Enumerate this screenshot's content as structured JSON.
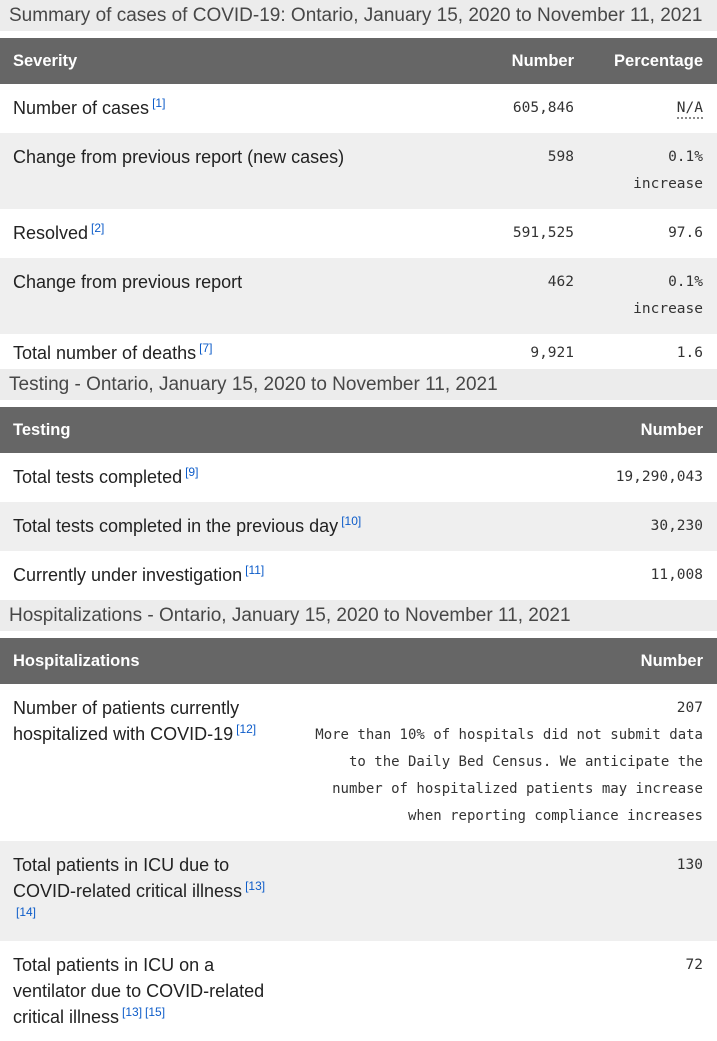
{
  "summary_table": {
    "caption": "Summary of cases of COVID-19: Ontario, January 15, 2020 to November 11, 2021",
    "columns": {
      "severity": "Severity",
      "number": "Number",
      "percentage": "Percentage"
    },
    "rows": [
      {
        "label": "Number of cases",
        "ref": "[1]",
        "number": "605,846",
        "percentage": "N/A"
      },
      {
        "label": "Change from previous report (new cases)",
        "number": "598",
        "percentage": "0.1%",
        "percentage_note": "increase"
      },
      {
        "label": "Resolved",
        "ref": "[2]",
        "number": "591,525",
        "percentage": "97.6"
      },
      {
        "label": "Change from previous report",
        "number": "462",
        "percentage": "0.1%",
        "percentage_note": "increase"
      },
      {
        "label": "Total number of deaths",
        "ref": "[7]",
        "number": "9,921",
        "percentage": "1.6"
      }
    ]
  },
  "testing_table": {
    "caption": "Testing - Ontario, January 15, 2020 to November 11, 2021",
    "columns": {
      "testing": "Testing",
      "number": "Number"
    },
    "rows": [
      {
        "label": "Total tests completed",
        "ref": "[9]",
        "number": "19,290,043"
      },
      {
        "label": "Total tests completed in the previous day",
        "ref": "[10]",
        "number": "30,230"
      },
      {
        "label": "Currently under investigation",
        "ref": "[11]",
        "number": "11,008"
      }
    ]
  },
  "hospitalizations_table": {
    "caption": "Hospitalizations - Ontario, January 15, 2020 to November 11, 2021",
    "columns": {
      "hospitalizations": "Hospitalizations",
      "number": "Number"
    },
    "rows": [
      {
        "label": "Number of patients currently hospitalized with COVID-19",
        "refs": [
          "[12]"
        ],
        "number": "207",
        "note": "More than 10% of hospitals did not submit data to the Daily Bed Census. We anticipate the number of hospitalized patients may increase when reporting compliance increases"
      },
      {
        "label": "Total patients in ICU due to COVID-related critical illness",
        "refs": [
          "[13]",
          "[14]"
        ],
        "number": "130"
      },
      {
        "label": "Total patients in ICU on a ventilator due to COVID-related critical illness",
        "refs": [
          "[13]",
          "[15]"
        ],
        "number": "72"
      }
    ]
  },
  "colors": {
    "caption_background": "#ececec",
    "header_background": "#666666",
    "striped_row_background": "#efefef",
    "footnote_link_blue": "#0d5cc9"
  }
}
